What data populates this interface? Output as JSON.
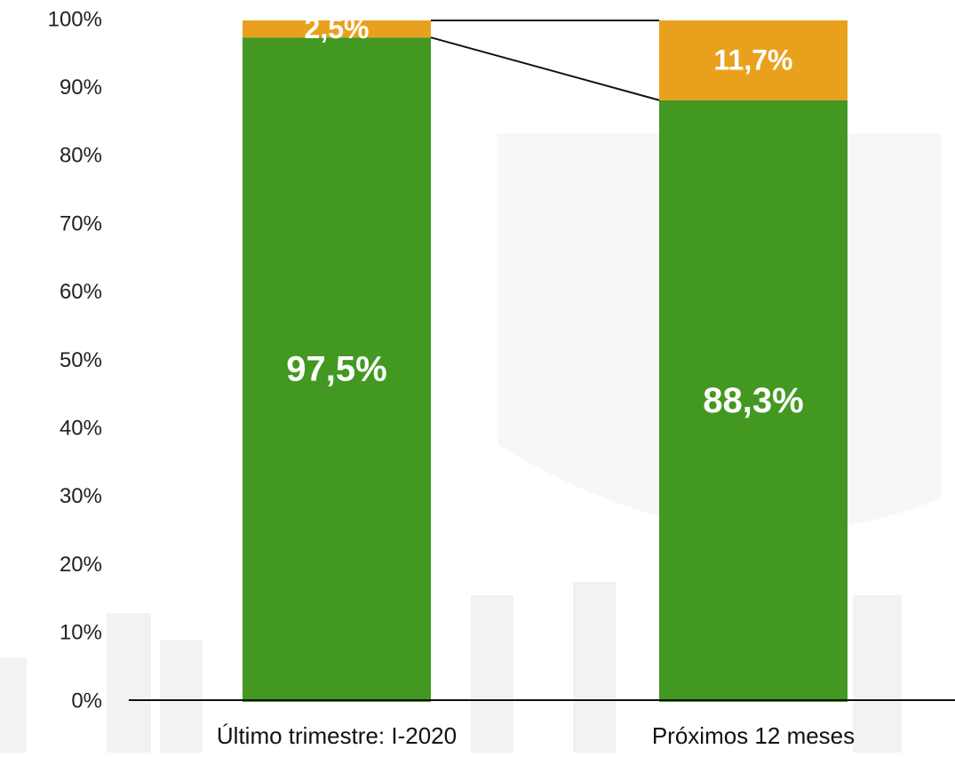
{
  "chart_data": {
    "type": "stacked_bar",
    "categories": [
      "Último trimestre: I-2020",
      "Próximos 12 meses"
    ],
    "series": [
      {
        "color": "#439821",
        "values": [
          97.5,
          88.3
        ],
        "value_labels": [
          "97,5%",
          "88,3%"
        ]
      },
      {
        "color": "#e9a11d",
        "values": [
          2.5,
          11.7
        ],
        "value_labels": [
          "2,5%",
          "11,7%"
        ]
      }
    ],
    "ylim": [
      0,
      100
    ],
    "yticks": [
      {
        "value": 0,
        "label": "0%"
      },
      {
        "value": 10,
        "label": "10%"
      },
      {
        "value": 20,
        "label": "20%"
      },
      {
        "value": 30,
        "label": "30%"
      },
      {
        "value": 40,
        "label": "40%"
      },
      {
        "value": 50,
        "label": "50%"
      },
      {
        "value": 60,
        "label": "60%"
      },
      {
        "value": 70,
        "label": "70%"
      },
      {
        "value": 80,
        "label": "80%"
      },
      {
        "value": 90,
        "label": "90%"
      },
      {
        "value": 100,
        "label": "100%"
      }
    ]
  }
}
